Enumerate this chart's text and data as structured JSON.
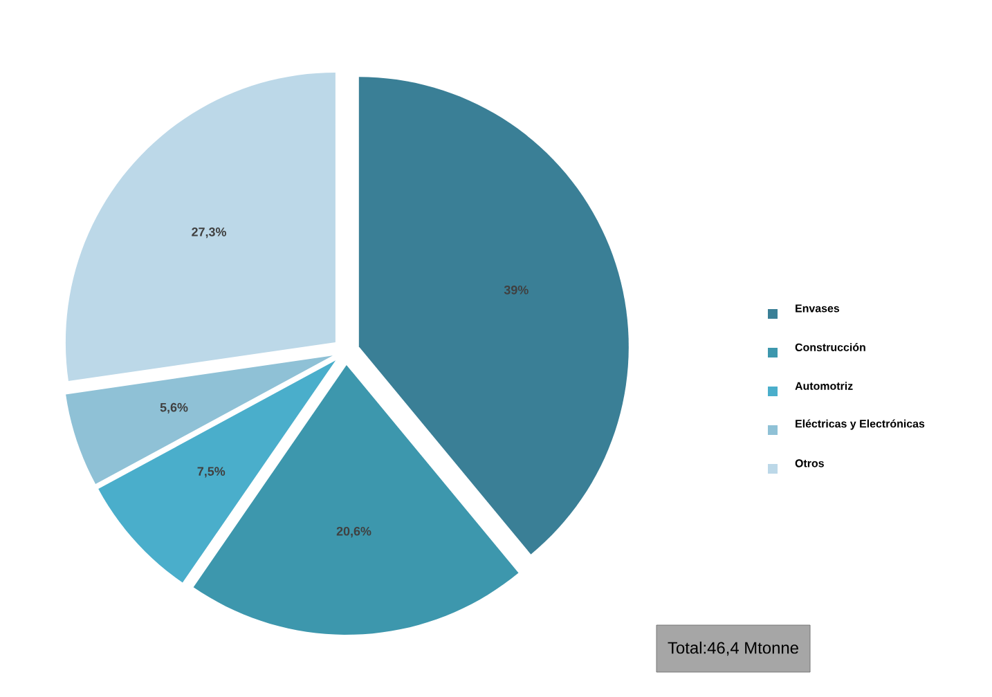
{
  "chart_data": {
    "type": "pie",
    "categories": [
      "Envases",
      "Construcción",
      "Automotriz",
      "Eléctricas y Electrónicas",
      "Otros"
    ],
    "values": [
      39,
      20.6,
      7.5,
      5.6,
      27.3
    ],
    "value_labels": [
      "39%",
      "20,6%",
      "7,5%",
      "5,6%",
      "27,3%"
    ],
    "colors": [
      "#3a7f96",
      "#3d97ad",
      "#4aaecb",
      "#8fc1d6",
      "#bcd8e8"
    ],
    "legend": "right",
    "annotations": [
      "Total:46,4 Mtonne"
    ]
  }
}
